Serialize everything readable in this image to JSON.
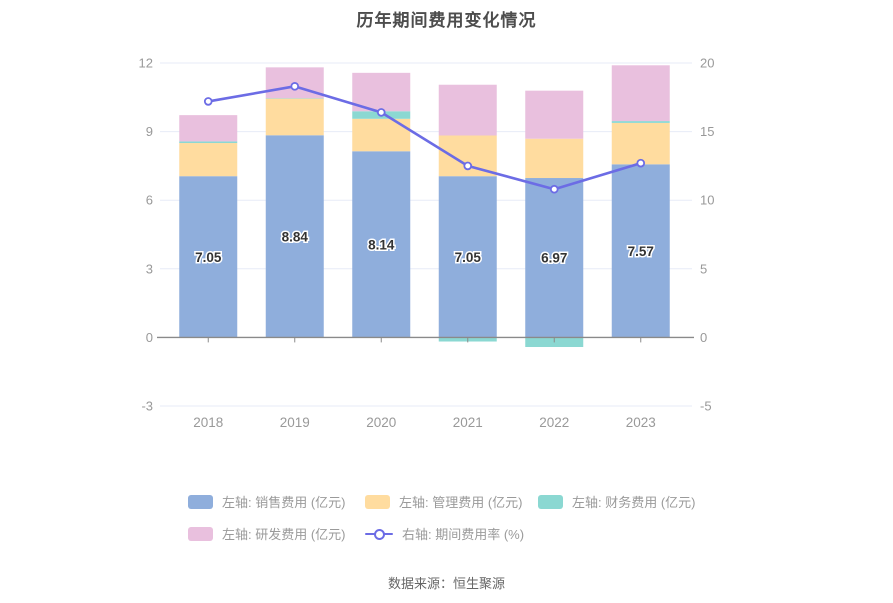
{
  "title": "历年期间费用变化情况",
  "source": "数据来源：恒生聚源",
  "colors": {
    "sales": "#8FAEDC",
    "management": "#FFDC9F",
    "finance": "#8BD8D2",
    "rd": "#E9C0DE",
    "rate_line": "#6C6CE5",
    "grid": "#E7EBF7",
    "axis_line": "#8A8A8A",
    "axis_text": "#999999",
    "bar_label": "#333333",
    "legend_text": "#9A9A9A"
  },
  "chart_data": {
    "type": "bar",
    "subtype": "stacked-bar-with-line",
    "categories": [
      "2018",
      "2019",
      "2020",
      "2021",
      "2022",
      "2023"
    ],
    "keys": [
      "sales",
      "management",
      "finance",
      "rd",
      "rate"
    ],
    "series": [
      {
        "name": "左轴: 销售费用 (亿元)",
        "type": "bar",
        "axis": "left",
        "values": [
          7.05,
          8.84,
          8.14,
          7.05,
          6.97,
          7.57
        ]
      },
      {
        "name": "左轴: 管理费用 (亿元)",
        "type": "bar",
        "axis": "left",
        "values": [
          1.45,
          1.61,
          1.42,
          1.78,
          1.72,
          1.81
        ]
      },
      {
        "name": "左轴: 财务费用 (亿元)",
        "type": "bar",
        "axis": "left",
        "values": [
          0.07,
          0.01,
          0.33,
          -0.18,
          -0.42,
          0.08
        ]
      },
      {
        "name": "左轴: 研发费用 (亿元)",
        "type": "bar",
        "axis": "left",
        "values": [
          1.15,
          1.35,
          1.68,
          2.22,
          2.1,
          2.44
        ]
      },
      {
        "name": "右轴: 期间费用率 (%)",
        "type": "line",
        "axis": "right",
        "values": [
          17.2,
          18.3,
          16.4,
          12.5,
          10.8,
          12.7
        ]
      }
    ],
    "bar_labels": [
      "7.05",
      "8.84",
      "8.14",
      "7.05",
      "6.97",
      "7.57"
    ],
    "left_axis": {
      "min": -3,
      "max": 12,
      "ticks": [
        -3,
        0,
        3,
        6,
        9,
        12
      ]
    },
    "right_axis": {
      "min": -5,
      "max": 20,
      "ticks": [
        -5,
        0,
        5,
        10,
        15,
        20
      ]
    },
    "grid": true,
    "legend_position": "bottom"
  }
}
